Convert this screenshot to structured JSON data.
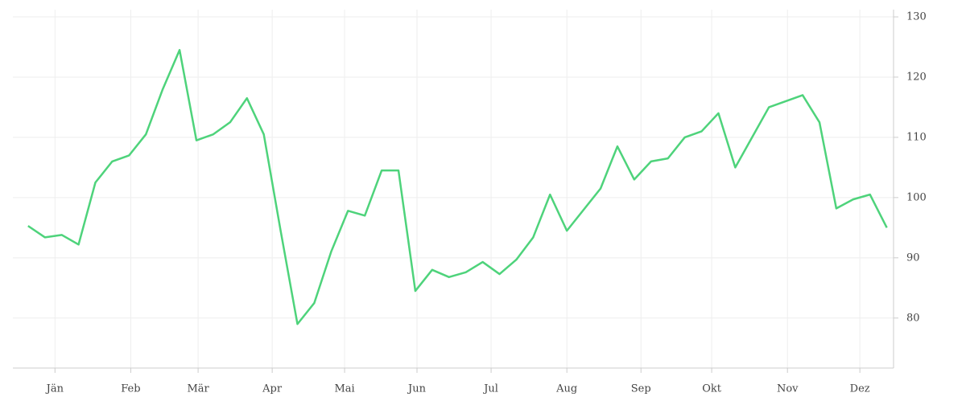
{
  "chart_data": {
    "type": "line",
    "x": [
      1,
      2,
      3,
      4,
      5,
      6,
      7,
      8,
      9,
      10,
      11,
      12,
      13,
      14,
      15,
      16,
      17,
      18,
      19,
      20,
      21,
      22,
      23,
      24,
      25,
      26,
      27,
      28,
      29,
      30,
      31,
      32,
      33,
      34,
      35,
      36,
      37,
      38,
      39,
      40,
      41,
      42,
      43,
      44,
      45,
      46,
      47,
      48,
      49,
      50,
      51,
      52
    ],
    "series": [
      {
        "color": "#4ed37b",
        "values": [
          95.3,
          93.4,
          93.8,
          92.2,
          102.5,
          106,
          107,
          110.5,
          118,
          124.5,
          109.5,
          110.5,
          112.5,
          116.5,
          110.5,
          94.5,
          79,
          82.5,
          91,
          97.8,
          97,
          104.5,
          104.5,
          84.5,
          88,
          86.8,
          87.6,
          89.3,
          87.3,
          89.7,
          93.4,
          100.5,
          94.5,
          98,
          101.5,
          108.5,
          103,
          106,
          106.5,
          110,
          111,
          114,
          105,
          110,
          115,
          116,
          117,
          112.5,
          98.2,
          99.7,
          100.5,
          95
        ]
      }
    ],
    "xlim": [
      0.1,
      52.4
    ],
    "xticks": [
      {
        "value": 2.6,
        "label": "Jän"
      },
      {
        "value": 7.1,
        "label": "Feb"
      },
      {
        "value": 11.1,
        "label": "Mär"
      },
      {
        "value": 15.5,
        "label": "Apr"
      },
      {
        "value": 19.8,
        "label": "Mai"
      },
      {
        "value": 24.1,
        "label": "Jun"
      },
      {
        "value": 28.5,
        "label": "Jul"
      },
      {
        "value": 33,
        "label": "Aug"
      },
      {
        "value": 37.4,
        "label": "Sep"
      },
      {
        "value": 41.6,
        "label": "Okt"
      },
      {
        "value": 46.1,
        "label": "Nov"
      },
      {
        "value": 50.4,
        "label": "Dez"
      }
    ],
    "ylim": [
      71.7,
      131.2
    ],
    "yticks": [
      80,
      90,
      100,
      110,
      120,
      130
    ],
    "grid": true
  }
}
